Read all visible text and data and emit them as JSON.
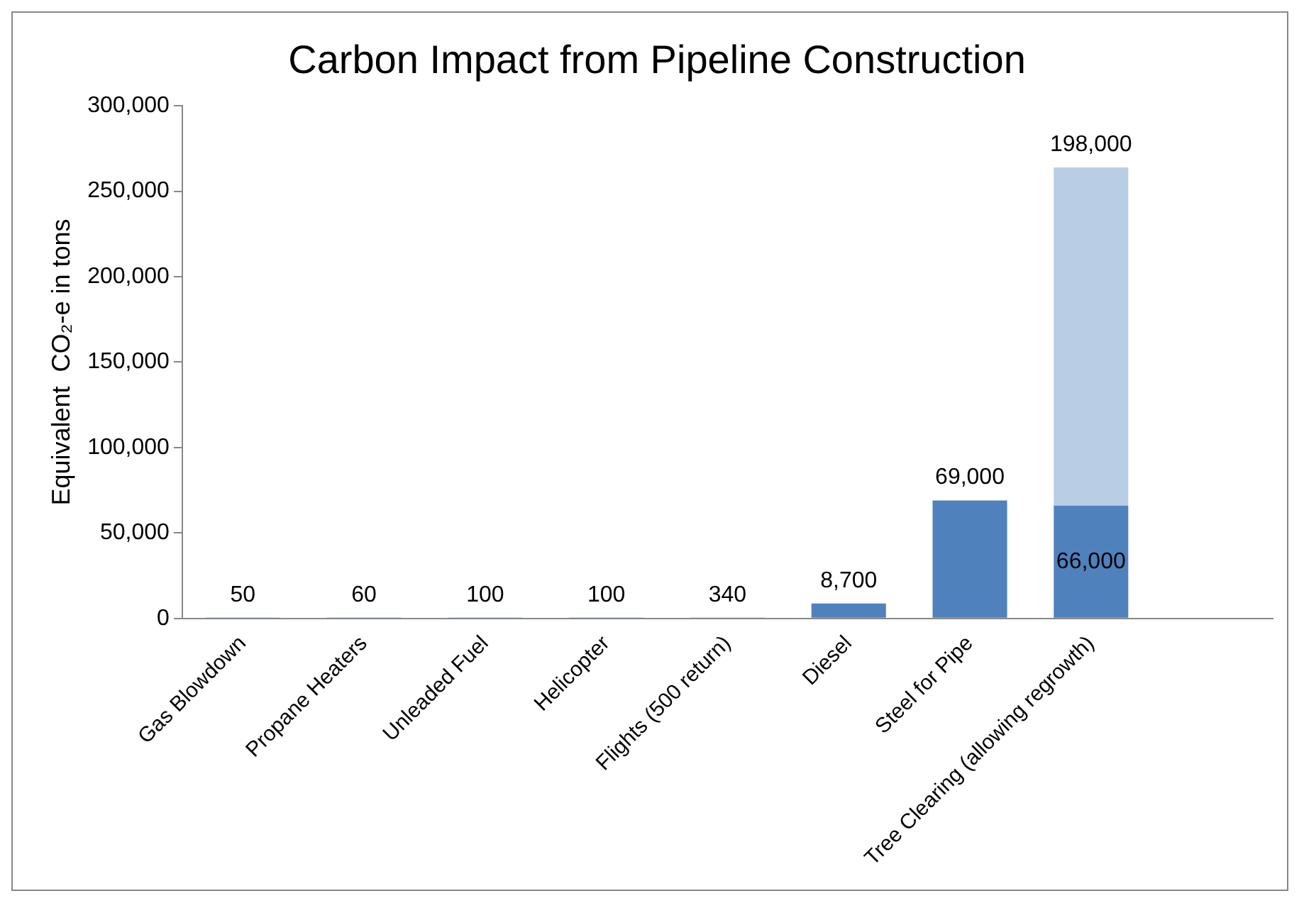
{
  "chart_data": {
    "type": "bar",
    "title": "Carbon Impact from Pipeline Construction",
    "ylabel": "Equivalent  CO₂-e in tons",
    "categories": [
      "Gas Blowdown",
      "Propane Heaters",
      "Unleaded Fuel",
      "Helicopter",
      "Flights (500 return)",
      "Diesel",
      "Steel for Pipe",
      "Tree Clearing (allowing regrowth)",
      null
    ],
    "series": [
      {
        "color": "#4f81bd",
        "values": [
          50,
          60,
          100,
          100,
          340,
          8700,
          69000,
          66000,
          null
        ],
        "value_labels": [
          "50",
          "60",
          "100",
          "100",
          "340",
          "8,700",
          "69,000",
          "66,000",
          null
        ]
      },
      {
        "color": "#b9cde5",
        "values": [
          null,
          null,
          null,
          null,
          null,
          null,
          null,
          198000,
          null
        ],
        "value_labels": [
          null,
          null,
          null,
          null,
          null,
          null,
          null,
          "198,000",
          null
        ]
      }
    ],
    "stacked": true,
    "grid": false,
    "legend": false,
    "ylim": [
      0,
      300000
    ],
    "yticks": [
      {
        "value": 0,
        "label": "0"
      },
      {
        "value": 50000,
        "label": "50,000"
      },
      {
        "value": 100000,
        "label": "100,000"
      },
      {
        "value": 150000,
        "label": "150,000"
      },
      {
        "value": 200000,
        "label": "200,000"
      },
      {
        "value": 250000,
        "label": "250,000"
      },
      {
        "value": 300000,
        "label": "300,000"
      }
    ]
  }
}
